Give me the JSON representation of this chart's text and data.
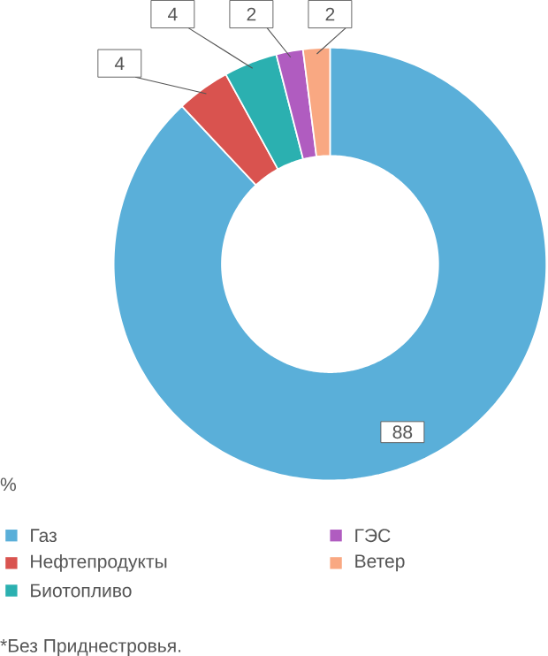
{
  "chart_data": {
    "type": "donut",
    "categories": [
      "Газ",
      "Нефтепродукты",
      "Биотопливо",
      "ГЭС",
      "Ветер"
    ],
    "values": [
      88,
      4,
      4,
      2,
      2
    ],
    "colors": [
      "#5aafd9",
      "#d9534f",
      "#2bb0b0",
      "#b05cc0",
      "#f9a882"
    ],
    "data_labels": true,
    "legend": "bottom",
    "annotations": [
      "%",
      "*Без Приднестровья."
    ]
  }
}
